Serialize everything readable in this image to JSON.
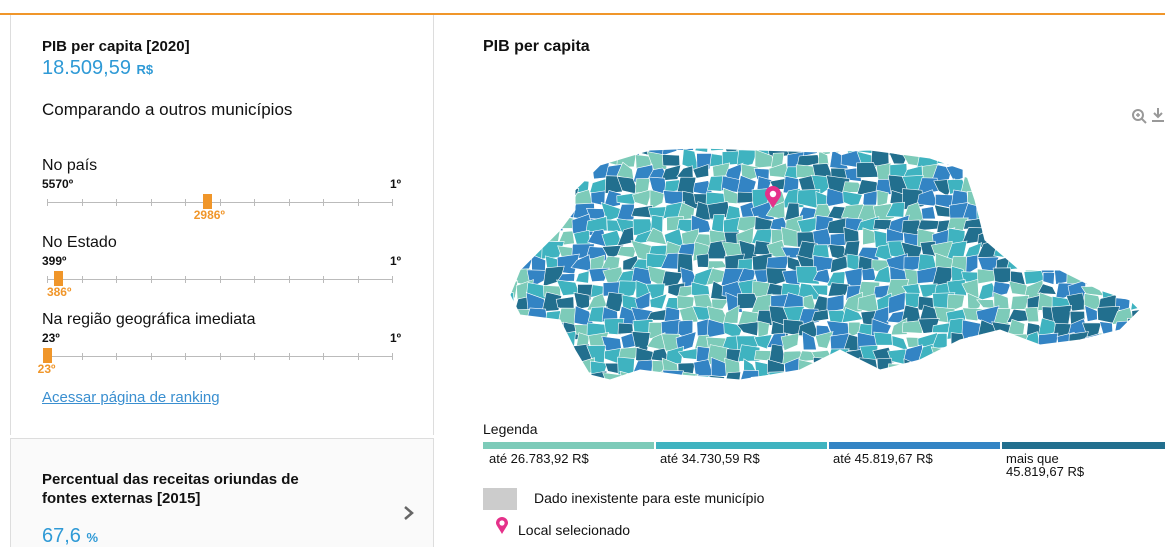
{
  "panel": {
    "title": "PIB per capita [2020]",
    "value": "18.509,59",
    "unit": "R$",
    "compare_heading": "Comparando a outros municípios",
    "rankings": [
      {
        "label": "No país",
        "worst": "5570º",
        "best": "1º",
        "rank": "2986º"
      },
      {
        "label": "No Estado",
        "worst": "399º",
        "best": "1º",
        "rank": "386º"
      },
      {
        "label": "Na região geográfica imediata",
        "worst": "23º",
        "best": "1º",
        "rank": "23º"
      }
    ],
    "link": "Acessar página de ranking"
  },
  "next_indicator": {
    "title": "Percentual das receitas oriundas de fontes externas [2015]",
    "value": "67,6",
    "unit": "%"
  },
  "map": {
    "title": "PIB per capita",
    "legend_title": "Legenda",
    "legend": [
      {
        "label": "até 26.783,92 R$",
        "color": "#7dcbb9"
      },
      {
        "label": "até 34.730,59 R$",
        "color": "#3fb3c0"
      },
      {
        "label": "até 45.819,67 R$",
        "color": "#3384c4"
      },
      {
        "label": "mais que 45.819,67 R$",
        "color": "#226f8e"
      }
    ],
    "no_data": "Dado inexistente para este município",
    "selected": "Local selecionado"
  }
}
